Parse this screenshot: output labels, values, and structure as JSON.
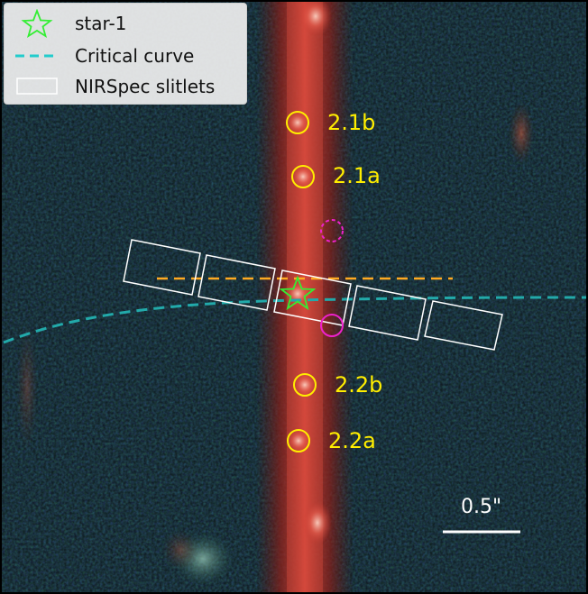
{
  "legend": {
    "items": [
      {
        "label": "star-1",
        "icon": "green-star-icon",
        "color": "#33ee33"
      },
      {
        "label": "Critical curve",
        "icon": "cyan-dashed-line-icon",
        "color": "#22cccc"
      },
      {
        "label": "NIRSpec slitlets",
        "icon": "white-rectangle-icon",
        "color": "#ffffff"
      }
    ]
  },
  "image_labels": {
    "img_2_1b": "2.1b",
    "img_2_1a": "2.1a",
    "img_2_2b": "2.2b",
    "img_2_2a": "2.2a"
  },
  "scale_bar": {
    "label": "0.5\""
  },
  "colors": {
    "background": "#0b1418",
    "arc": "#c8342a",
    "image_circles": "#ffee00",
    "magenta_circles": "#ee22cc",
    "orange_dashed": "#ffaa22",
    "critical_curve": "#22aaaa",
    "slitlets": "#ffffff",
    "star": "#33ee33"
  }
}
